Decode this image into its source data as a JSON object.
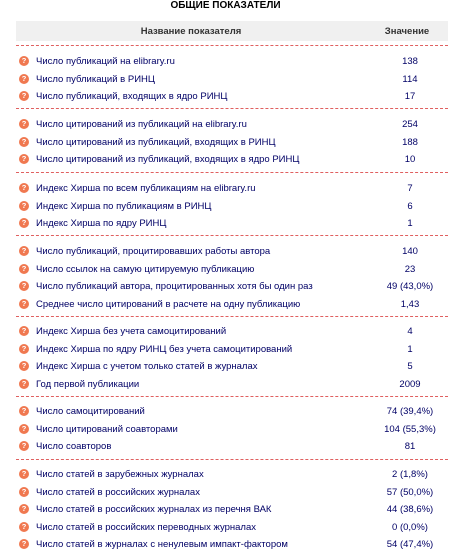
{
  "title": "ОБЩИЕ ПОКАЗАТЕЛИ",
  "header": {
    "name": "Название показателя",
    "value": "Значение"
  },
  "icon": "question-circle-icon",
  "groups": [
    {
      "rows": [
        {
          "label": "Число публикаций на elibrary.ru",
          "value": "138"
        },
        {
          "label": "Число публикаций в РИНЦ",
          "value": "114"
        },
        {
          "label": "Число публикаций, входящих в ядро РИНЦ",
          "value": "17"
        }
      ]
    },
    {
      "rows": [
        {
          "label": "Число цитирований из публикаций на elibrary.ru",
          "value": "254"
        },
        {
          "label": "Число цитирований из публикаций, входящих в РИНЦ",
          "value": "188"
        },
        {
          "label": "Число цитирований из публикаций, входящих в ядро РИНЦ",
          "value": "10"
        }
      ]
    },
    {
      "rows": [
        {
          "label": "Индекс Хирша по всем публикациям на elibrary.ru",
          "value": "7"
        },
        {
          "label": "Индекс Хирша по публикациям в РИНЦ",
          "value": "6"
        },
        {
          "label": "Индекс Хирша по ядру РИНЦ",
          "value": "1"
        }
      ]
    },
    {
      "rows": [
        {
          "label": "Число публикаций, процитировавших работы автора",
          "value": "140"
        },
        {
          "label": "Число ссылок на самую цитируемую публикацию",
          "value": "23"
        },
        {
          "label": "Число публикаций автора, процитированных хотя бы один раз",
          "value": "49 (43,0%)"
        },
        {
          "label": "Среднее число цитирований в расчете на одну публикацию",
          "value": "1,43"
        }
      ]
    },
    {
      "rows": [
        {
          "label": "Индекс Хирша без учета самоцитирований",
          "value": "4"
        },
        {
          "label": "Индекс Хирша по ядру РИНЦ без учета самоцитирований",
          "value": "1"
        },
        {
          "label": "Индекс Хирша с учетом только статей в журналах",
          "value": "5"
        },
        {
          "label": "Год первой публикации",
          "value": "2009"
        }
      ]
    },
    {
      "rows": [
        {
          "label": "Число самоцитирований",
          "value": "74 (39,4%)"
        },
        {
          "label": "Число цитирований соавторами",
          "value": "104 (55,3%)"
        },
        {
          "label": "Число соавторов",
          "value": "81"
        }
      ]
    },
    {
      "rows": [
        {
          "label": "Число статей в зарубежных журналах",
          "value": "2 (1,8%)"
        },
        {
          "label": "Число статей в российских журналах",
          "value": "57 (50,0%)"
        },
        {
          "label": "Число статей в российских журналах из перечня ВАК",
          "value": "44 (38,6%)"
        },
        {
          "label": "Число статей в российских переводных журналах",
          "value": "0 (0,0%)"
        },
        {
          "label": "Число статей в журналах с ненулевым импакт-фактором",
          "value": "54 (47,4%)"
        }
      ]
    }
  ]
}
